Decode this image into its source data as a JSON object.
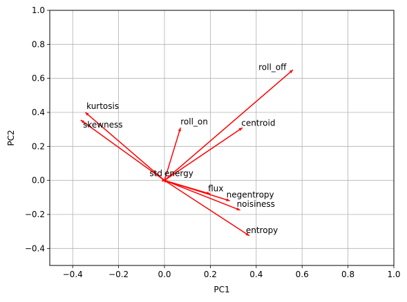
{
  "chart_data": {
    "type": "scatter",
    "subtype": "biplot-loading-vectors",
    "title": "",
    "xlabel": "PC1",
    "ylabel": "PC2",
    "xlim": [
      -0.5,
      1.0
    ],
    "ylim": [
      -0.5,
      1.0
    ],
    "xticks": [
      -0.4,
      -0.2,
      0.0,
      0.2,
      0.4,
      0.6,
      0.8,
      1.0
    ],
    "xtick_labels": [
      "−0.4",
      "−0.2",
      "0.0",
      "0.2",
      "0.4",
      "0.6",
      "0.8",
      "1.0"
    ],
    "yticks": [
      -0.4,
      -0.2,
      0.0,
      0.2,
      0.4,
      0.6,
      0.8,
      1.0
    ],
    "ytick_labels": [
      "−0.4",
      "−0.2",
      "0.0",
      "0.2",
      "0.4",
      "0.6",
      "0.8",
      "1.0"
    ],
    "grid": true,
    "arrow_color": "#ff0000",
    "grid_color": "#b0b0b0",
    "vectors": [
      {
        "label": "roll_off",
        "x": 0.56,
        "y": 0.65,
        "lx": 0.41,
        "ly": 0.65
      },
      {
        "label": "kurtosis",
        "x": -0.345,
        "y": 0.4,
        "lx": -0.34,
        "ly": 0.42
      },
      {
        "label": "skewness",
        "x": -0.365,
        "y": 0.355,
        "lx": -0.355,
        "ly": 0.31
      },
      {
        "label": "roll_on",
        "x": 0.07,
        "y": 0.31,
        "lx": 0.07,
        "ly": 0.33
      },
      {
        "label": "centroid",
        "x": 0.34,
        "y": 0.31,
        "lx": 0.335,
        "ly": 0.32
      },
      {
        "label": "std",
        "x": -0.005,
        "y": 0.005,
        "lx": -0.065,
        "ly": 0.025
      },
      {
        "label": "energy",
        "x": 0.005,
        "y": 0.0,
        "lx": 0.0,
        "ly": 0.025
      },
      {
        "label": "flux",
        "x": 0.2,
        "y": -0.08,
        "lx": 0.19,
        "ly": -0.065
      },
      {
        "label": "negentropy",
        "x": 0.285,
        "y": -0.12,
        "lx": 0.27,
        "ly": -0.1
      },
      {
        "label": "noisiness",
        "x": 0.33,
        "y": -0.175,
        "lx": 0.315,
        "ly": -0.155
      },
      {
        "label": "entropy",
        "x": 0.37,
        "y": -0.325,
        "lx": 0.355,
        "ly": -0.31
      }
    ]
  }
}
